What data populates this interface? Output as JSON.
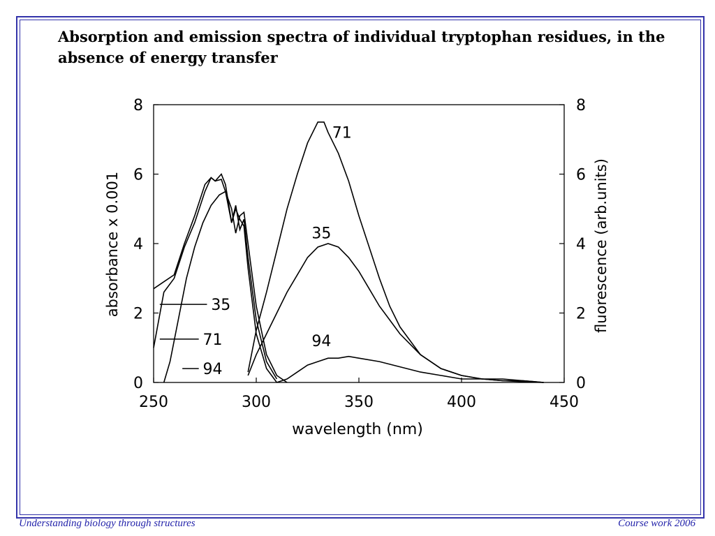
{
  "slide": {
    "title": "Absorption and emission spectra of individual tryptophan residues, in the absence of energy transfer",
    "footer_left": "Understanding biology through structures",
    "footer_right": "Course work 2006",
    "frame_color": "#3333aa",
    "footer_color": "#2222aa"
  },
  "chart_data": {
    "type": "line",
    "title": "",
    "xlabel": "wavelength (nm)",
    "ylabel_left": "absorbance x 0.001",
    "ylabel_right": "fluorescence (arb.units)",
    "xlim": [
      250,
      450
    ],
    "ylim_left": [
      0,
      8
    ],
    "ylim_right": [
      0,
      8
    ],
    "x_ticks": [
      250,
      300,
      350,
      400,
      450
    ],
    "y_ticks_left": [
      0,
      2,
      4,
      6,
      8
    ],
    "y_ticks_right": [
      0,
      2,
      4,
      6,
      8
    ],
    "grid": false,
    "absorption_series": [
      {
        "name": "35",
        "x": [
          250,
          255,
          260,
          265,
          270,
          275,
          278,
          280,
          283,
          285,
          288,
          290,
          292,
          294,
          296,
          300,
          305,
          310
        ],
        "y": [
          1.0,
          2.6,
          3.0,
          3.9,
          4.6,
          5.5,
          5.9,
          5.8,
          5.85,
          5.5,
          4.6,
          5.1,
          4.4,
          4.7,
          3.6,
          1.8,
          0.6,
          0.1
        ]
      },
      {
        "name": "71",
        "x": [
          250,
          255,
          260,
          265,
          270,
          275,
          278,
          280,
          283,
          285,
          288,
          290,
          292,
          294,
          296,
          300,
          305,
          310
        ],
        "y": [
          2.7,
          2.9,
          3.1,
          4.0,
          4.8,
          5.7,
          5.9,
          5.8,
          6.0,
          5.7,
          4.6,
          5.0,
          4.7,
          4.5,
          3.3,
          1.4,
          0.4,
          0.0
        ]
      },
      {
        "name": "94",
        "x": [
          255,
          258,
          262,
          266,
          270,
          274,
          278,
          282,
          285,
          288,
          290,
          292,
          294,
          296,
          300,
          305,
          310,
          315
        ],
        "y": [
          0.0,
          0.6,
          1.8,
          3.0,
          3.9,
          4.6,
          5.1,
          5.4,
          5.5,
          5.0,
          4.3,
          4.8,
          4.9,
          4.0,
          2.2,
          0.8,
          0.2,
          0.0
        ]
      }
    ],
    "emission_series": [
      {
        "name": "71",
        "x": [
          296,
          300,
          305,
          310,
          315,
          320,
          325,
          330,
          333,
          335,
          340,
          345,
          350,
          355,
          360,
          365,
          370,
          380,
          390,
          400,
          410,
          420,
          430,
          440
        ],
        "y": [
          0.3,
          1.5,
          2.6,
          3.8,
          5.0,
          6.0,
          6.9,
          7.5,
          7.5,
          7.2,
          6.6,
          5.8,
          4.8,
          3.9,
          3.0,
          2.2,
          1.6,
          0.8,
          0.4,
          0.2,
          0.1,
          0.05,
          0.02,
          0.0
        ]
      },
      {
        "name": "35",
        "x": [
          296,
          300,
          305,
          310,
          315,
          320,
          325,
          330,
          335,
          340,
          345,
          350,
          355,
          360,
          365,
          370,
          380,
          390,
          400,
          410,
          420,
          430,
          440
        ],
        "y": [
          0.2,
          0.8,
          1.4,
          2.0,
          2.6,
          3.1,
          3.6,
          3.9,
          4.0,
          3.9,
          3.6,
          3.2,
          2.7,
          2.2,
          1.8,
          1.4,
          0.8,
          0.4,
          0.2,
          0.1,
          0.1,
          0.05,
          0.0
        ]
      },
      {
        "name": "94",
        "x": [
          310,
          315,
          320,
          325,
          330,
          335,
          340,
          345,
          350,
          360,
          370,
          380,
          390,
          400,
          410,
          420,
          430,
          440
        ],
        "y": [
          0.0,
          0.1,
          0.3,
          0.5,
          0.6,
          0.7,
          0.7,
          0.75,
          0.7,
          0.6,
          0.45,
          0.3,
          0.2,
          0.1,
          0.1,
          0.05,
          0.05,
          0.0
        ]
      }
    ],
    "absorption_labels": [
      "35",
      "71",
      "94"
    ],
    "emission_labels": [
      "71",
      "35",
      "94"
    ]
  }
}
